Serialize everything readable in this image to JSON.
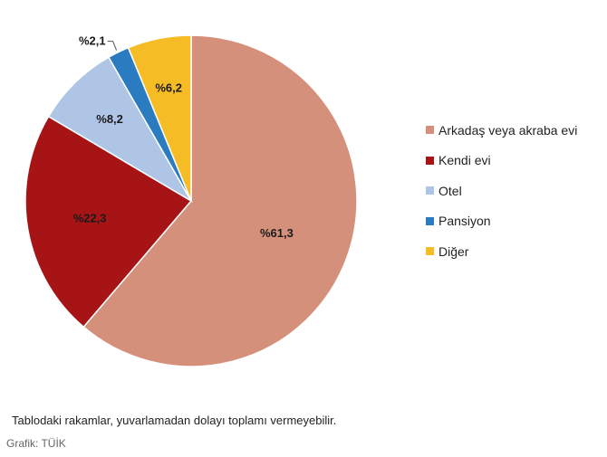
{
  "chart_data": {
    "type": "pie",
    "categories": [
      "Arkadaş veya akraba evi",
      "Kendi evi",
      "Otel",
      "Pansiyon",
      "Diğer"
    ],
    "values": [
      61.3,
      22.3,
      8.2,
      2.1,
      6.2
    ],
    "value_labels": [
      "%61,3",
      "%22,3",
      "%8,2",
      "%2,1",
      "%6,2"
    ],
    "colors": [
      "#D4907A",
      "#A61416",
      "#AFC5E6",
      "#2A7BBF",
      "#F5BC26"
    ],
    "start_angle_deg": 0,
    "direction": "clockwise",
    "legend_position": "right"
  },
  "note": "Tablodaki rakamlar, yuvarlamadan dolayı toplamı vermeyebilir.",
  "source": "Grafik: TÜİK"
}
